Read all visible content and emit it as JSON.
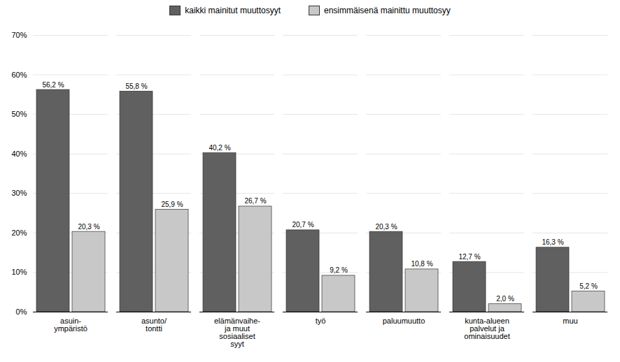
{
  "chart_data": {
    "type": "bar",
    "categories": [
      "asuin-\nympäristö",
      "asunto/\ntontti",
      "elämänvaihe-\nja muut\nsosiaaliset\nsyyt",
      "työ",
      "paluumuutto",
      "kunta-alueen\npalvelut ja\nominaisuudet",
      "muu"
    ],
    "series": [
      {
        "name": "kaikki mainitut muuttosyyt",
        "color": "#606060",
        "values": [
          56.2,
          55.8,
          40.2,
          20.7,
          20.3,
          12.7,
          16.3
        ],
        "value_labels": [
          "56,2 %",
          "55,8 %",
          "40,2 %",
          "20,7 %",
          "20,3 %",
          "12,7 %",
          "16,3 %"
        ]
      },
      {
        "name": "ensimmäisenä mainittu muuttosyy",
        "color": "#c8c8c8",
        "values": [
          20.3,
          25.9,
          26.7,
          9.2,
          10.8,
          2.0,
          5.2
        ],
        "value_labels": [
          "20,3 %",
          "25,9 %",
          "26,7 %",
          "9,2 %",
          "10,8 %",
          "2,0 %",
          "5,2 %"
        ]
      }
    ],
    "ylim": [
      0,
      70
    ],
    "yticks": [
      {
        "value": 0,
        "label": "0%"
      },
      {
        "value": 10,
        "label": "10%"
      },
      {
        "value": 20,
        "label": "20%"
      },
      {
        "value": 30,
        "label": "30%"
      },
      {
        "value": 40,
        "label": "40%"
      },
      {
        "value": 50,
        "label": "50%"
      },
      {
        "value": 60,
        "label": "60%"
      },
      {
        "value": 70,
        "label": "70%"
      }
    ],
    "grid": true,
    "legend": "top",
    "data_labels": true
  }
}
